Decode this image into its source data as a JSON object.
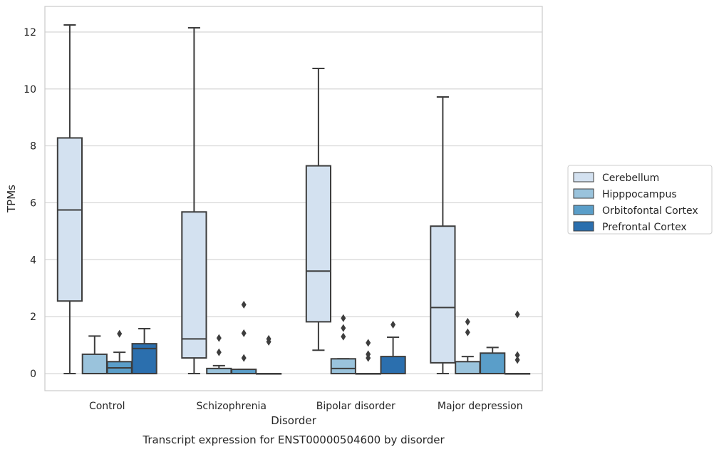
{
  "chart_data": {
    "type": "box",
    "title": "Transcript expression for ENST00000504600 by disorder",
    "xlabel": "Disorder",
    "ylabel": "TPMs",
    "ylim": [
      -0.6,
      12.9
    ],
    "yticks": [
      0,
      2,
      4,
      6,
      8,
      10,
      12
    ],
    "ytick_labels": [
      "0",
      "2",
      "4",
      "6",
      "8",
      "10",
      "12"
    ],
    "grid": true,
    "legend_position": "right",
    "categories": [
      "Control",
      "Schizophrenia",
      "Bipolar disorder",
      "Major depression"
    ],
    "series": [
      {
        "name": "Cerebellum",
        "color": "#d3e1f0",
        "boxes": [
          {
            "whislo": 0.0,
            "q1": 2.55,
            "med": 5.75,
            "q3": 8.28,
            "whishi": 12.25,
            "fliers": []
          },
          {
            "whislo": 0.0,
            "q1": 0.55,
            "med": 1.22,
            "q3": 5.68,
            "whishi": 12.15,
            "fliers": []
          },
          {
            "whislo": 0.82,
            "q1": 1.82,
            "med": 3.6,
            "q3": 7.3,
            "whishi": 10.72,
            "fliers": []
          },
          {
            "whislo": 0.0,
            "q1": 0.38,
            "med": 2.32,
            "q3": 5.18,
            "whishi": 9.72,
            "fliers": []
          }
        ]
      },
      {
        "name": "Hipppocampus",
        "color": "#9ac3dc",
        "boxes": [
          {
            "whislo": 0.0,
            "q1": 0.0,
            "med": 0.0,
            "q3": 0.68,
            "whishi": 1.32,
            "fliers": []
          },
          {
            "whislo": 0.0,
            "q1": 0.0,
            "med": 0.0,
            "q3": 0.18,
            "whishi": 0.28,
            "fliers": [
              0.75,
              1.25
            ]
          },
          {
            "whislo": 0.0,
            "q1": 0.0,
            "med": 0.18,
            "q3": 0.52,
            "whishi": 0.52,
            "fliers": [
              1.3,
              1.6,
              1.95
            ]
          },
          {
            "whislo": 0.0,
            "q1": 0.0,
            "med": 0.0,
            "q3": 0.42,
            "whishi": 0.6,
            "fliers": [
              1.45,
              1.82
            ]
          }
        ]
      },
      {
        "name": "Orbitofontal Cortex",
        "color": "#5a9ec9",
        "boxes": [
          {
            "whislo": 0.0,
            "q1": 0.0,
            "med": 0.2,
            "q3": 0.42,
            "whishi": 0.75,
            "fliers": [
              1.4
            ]
          },
          {
            "whislo": 0.0,
            "q1": 0.0,
            "med": 0.0,
            "q3": 0.15,
            "whishi": 0.15,
            "fliers": [
              0.55,
              1.42,
              2.42
            ]
          },
          {
            "whislo": 0.0,
            "q1": 0.0,
            "med": 0.0,
            "q3": 0.0,
            "whishi": 0.0,
            "fliers": [
              0.55,
              0.68,
              1.08
            ]
          },
          {
            "whislo": 0.0,
            "q1": 0.0,
            "med": 0.0,
            "q3": 0.72,
            "whishi": 0.92,
            "fliers": []
          }
        ]
      },
      {
        "name": "Prefrontal Cortex",
        "color": "#2b6fae",
        "boxes": [
          {
            "whislo": 0.0,
            "q1": 0.0,
            "med": 0.88,
            "q3": 1.05,
            "whishi": 1.58,
            "fliers": []
          },
          {
            "whislo": 0.0,
            "q1": 0.0,
            "med": 0.0,
            "q3": 0.0,
            "whishi": 0.0,
            "fliers": [
              1.12,
              1.22
            ]
          },
          {
            "whislo": 0.0,
            "q1": 0.0,
            "med": 0.0,
            "q3": 0.6,
            "whishi": 1.28,
            "fliers": [
              1.72
            ]
          },
          {
            "whislo": 0.0,
            "q1": 0.0,
            "med": 0.0,
            "q3": 0.0,
            "whishi": 0.0,
            "fliers": [
              0.48,
              0.65,
              2.08
            ]
          }
        ]
      }
    ]
  }
}
